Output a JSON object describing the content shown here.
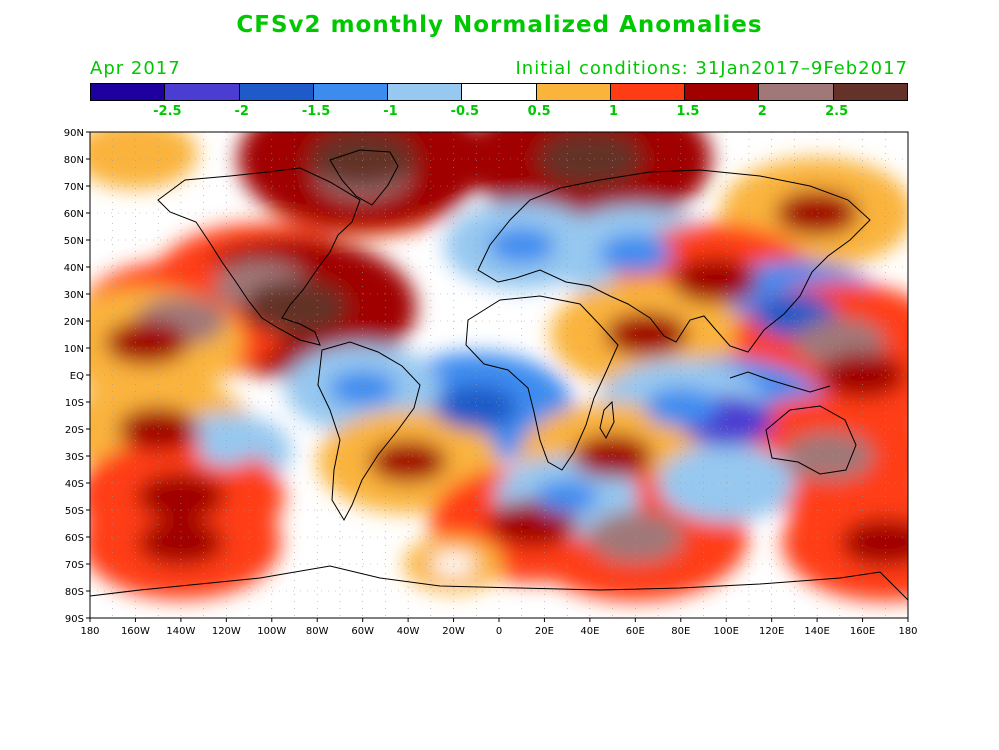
{
  "title": "CFSv2 monthly Normalized Anomalies",
  "valid_month": "Apr 2017",
  "initial_conditions": "Initial conditions: 31Jan2017–9Feb2017",
  "colorbar": {
    "colors": [
      "#1e00a0",
      "#4b3cd2",
      "#1e5ac8",
      "#3c8cf0",
      "#96c8f0",
      "#ffffff",
      "#fab43c",
      "#ff3c14",
      "#a00000",
      "#a07878",
      "#643228"
    ],
    "labels": [
      "-2.5",
      "-2",
      "-1.5",
      "-1",
      "-0.5",
      "0.5",
      "1",
      "1.5",
      "2",
      "2.5"
    ]
  },
  "axes": {
    "lat_labels": [
      "90N",
      "80N",
      "70N",
      "60N",
      "50N",
      "40N",
      "30N",
      "20N",
      "10N",
      "EQ",
      "10S",
      "20S",
      "30S",
      "40S",
      "50S",
      "60S",
      "70S",
      "80S",
      "90S"
    ],
    "lon_labels": [
      "180",
      "160W",
      "140W",
      "120W",
      "100W",
      "80W",
      "60W",
      "40W",
      "20W",
      "0",
      "20E",
      "40E",
      "60E",
      "80E",
      "100E",
      "120E",
      "140E",
      "160E",
      "180"
    ]
  },
  "chart_data": {
    "type": "heatmap",
    "title": "CFSv2 monthly Normalized Anomalies",
    "xlim": [
      -180,
      180
    ],
    "ylim": [
      -90,
      90
    ],
    "colorscale_boundaries": [
      -2.5,
      -2,
      -1.5,
      -1,
      -0.5,
      0.5,
      1,
      1.5,
      2,
      2.5
    ],
    "grid": true,
    "features": [
      {
        "lon": -160,
        "lat": 82,
        "value": 0.7
      },
      {
        "lon": -105,
        "lat": 33,
        "value": 2.2
      },
      {
        "lon": -90,
        "lat": 25,
        "value": 2.6
      },
      {
        "lon": -140,
        "lat": 20,
        "value": 2.1
      },
      {
        "lon": -155,
        "lat": 12,
        "value": 1.8
      },
      {
        "lon": -60,
        "lat": 75,
        "value": 2.3
      },
      {
        "lon": -60,
        "lat": 80,
        "value": 2.7
      },
      {
        "lon": 40,
        "lat": 80,
        "value": 2.6
      },
      {
        "lon": 140,
        "lat": 60,
        "value": 1.8
      },
      {
        "lon": 10,
        "lat": 48,
        "value": -1.2
      },
      {
        "lon": 60,
        "lat": 45,
        "value": -1.4
      },
      {
        "lon": 95,
        "lat": 35,
        "value": 1.9
      },
      {
        "lon": 130,
        "lat": 22,
        "value": -1.8
      },
      {
        "lon": 65,
        "lat": 15,
        "value": 1.8
      },
      {
        "lon": 150,
        "lat": 12,
        "value": 2.1
      },
      {
        "lon": 160,
        "lat": 0,
        "value": 1.9
      },
      {
        "lon": -10,
        "lat": -12,
        "value": -1.8
      },
      {
        "lon": -60,
        "lat": -5,
        "value": -1.2
      },
      {
        "lon": 100,
        "lat": -17,
        "value": -2.2
      },
      {
        "lon": 80,
        "lat": -12,
        "value": -1.4
      },
      {
        "lon": -150,
        "lat": -20,
        "value": 1.7
      },
      {
        "lon": -120,
        "lat": -28,
        "value": -0.8
      },
      {
        "lon": -140,
        "lat": -45,
        "value": 2.0
      },
      {
        "lon": -40,
        "lat": -32,
        "value": 1.6
      },
      {
        "lon": 50,
        "lat": -30,
        "value": 1.7
      },
      {
        "lon": 145,
        "lat": -30,
        "value": 2.1
      },
      {
        "lon": 15,
        "lat": -55,
        "value": 2.0
      },
      {
        "lon": 60,
        "lat": -60,
        "value": 2.3
      },
      {
        "lon": -140,
        "lat": -62,
        "value": 1.9
      },
      {
        "lon": 170,
        "lat": -62,
        "value": 2.0
      },
      {
        "lon": 30,
        "lat": -45,
        "value": -1.0
      },
      {
        "lon": 100,
        "lat": -40,
        "value": -0.9
      },
      {
        "lon": -20,
        "lat": -70,
        "value": 0.3
      }
    ]
  }
}
